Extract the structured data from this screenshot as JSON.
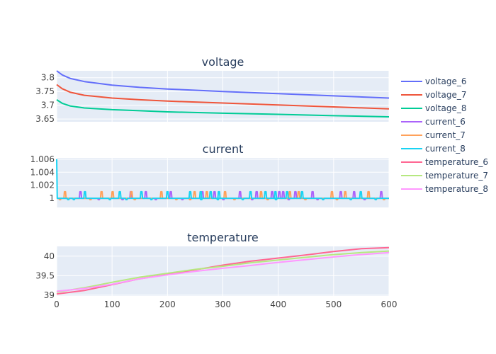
{
  "chart_data": {
    "type": "line",
    "x_range": [
      0,
      600
    ],
    "x_ticks": [
      0,
      100,
      200,
      300,
      400,
      500,
      600
    ],
    "grid": true,
    "legend_position": "right",
    "panels": [
      {
        "title": "voltage",
        "y_range": [
          3.64,
          3.825
        ],
        "y_ticks": [
          3.65,
          3.7,
          3.75,
          3.8
        ],
        "y_tick_labels": [
          "3.65",
          "3.7",
          "3.75",
          "3.8"
        ],
        "series": [
          {
            "name": "voltage_6",
            "color": "#636efa",
            "points": [
              [
                0,
                3.825
              ],
              [
                10,
                3.81
              ],
              [
                25,
                3.797
              ],
              [
                50,
                3.786
              ],
              [
                100,
                3.773
              ],
              [
                150,
                3.765
              ],
              [
                200,
                3.759
              ],
              [
                300,
                3.75
              ],
              [
                400,
                3.742
              ],
              [
                500,
                3.734
              ],
              [
                600,
                3.726
              ]
            ]
          },
          {
            "name": "voltage_7",
            "color": "#ef553b",
            "points": [
              [
                0,
                3.775
              ],
              [
                10,
                3.76
              ],
              [
                25,
                3.747
              ],
              [
                50,
                3.736
              ],
              [
                100,
                3.726
              ],
              [
                150,
                3.72
              ],
              [
                200,
                3.715
              ],
              [
                300,
                3.708
              ],
              [
                400,
                3.701
              ],
              [
                500,
                3.694
              ],
              [
                600,
                3.687
              ]
            ]
          },
          {
            "name": "voltage_8",
            "color": "#00cc96",
            "points": [
              [
                0,
                3.72
              ],
              [
                10,
                3.707
              ],
              [
                25,
                3.697
              ],
              [
                50,
                3.69
              ],
              [
                100,
                3.684
              ],
              [
                150,
                3.68
              ],
              [
                200,
                3.676
              ],
              [
                300,
                3.671
              ],
              [
                400,
                3.667
              ],
              [
                500,
                3.662
              ],
              [
                600,
                3.658
              ]
            ]
          }
        ]
      },
      {
        "title": "current",
        "y_range": [
          0.9986,
          1.0062
        ],
        "y_ticks": [
          1,
          1.002,
          1.004,
          1.006
        ],
        "y_tick_labels": [
          "1",
          "1.002",
          "1.004",
          "1.006"
        ],
        "series": [
          {
            "name": "current_6",
            "color": "#ab63fa",
            "base": 1.0,
            "high": 1.001,
            "low": 0.9998,
            "spikes_high": [
              42,
              133,
              160,
              205,
              262,
              284,
              330,
              360,
              388,
              401,
              408,
              430,
              461,
              512,
              536,
              585
            ],
            "spikes_low": [
              75,
              118,
              178,
              226,
              300,
              352,
              418,
              470,
              555
            ]
          },
          {
            "name": "current_7",
            "color": "#ffa15a",
            "base": 1.0,
            "high": 1.001,
            "low": 0.9998,
            "spikes_high": [
              14,
              80,
              100,
              134,
              188,
              248,
              270,
              303,
              368,
              420,
              436,
              496,
              520,
              562
            ],
            "spikes_low": [
              5,
              60,
              140,
              215,
              240,
              320,
              380,
              448,
              505,
              590
            ]
          },
          {
            "name": "current_8",
            "color": "#19d3f3",
            "base": 1.0,
            "high": 1.001,
            "low": 0.9998,
            "start_spike": 1.006,
            "spikes_high": [
              50,
              113,
              152,
              199,
              240,
              259,
              277,
              292,
              349,
              376,
              394,
              415,
              442,
              548
            ],
            "spikes_low": [
              20,
              30,
              95,
              125,
              170,
              260,
              290,
              335,
              395,
              480,
              530,
              575
            ]
          }
        ]
      },
      {
        "title": "temperature",
        "y_range": [
          38.98,
          40.25
        ],
        "y_ticks": [
          39,
          39.5,
          40
        ],
        "y_tick_labels": [
          "39",
          "39.5",
          "40"
        ],
        "series": [
          {
            "name": "temperature_6",
            "color": "#ff6692",
            "points": [
              [
                0,
                39.03
              ],
              [
                50,
                39.12
              ],
              [
                100,
                39.27
              ],
              [
                150,
                39.42
              ],
              [
                200,
                39.53
              ],
              [
                250,
                39.65
              ],
              [
                300,
                39.77
              ],
              [
                350,
                39.87
              ],
              [
                400,
                39.95
              ],
              [
                450,
                40.03
              ],
              [
                500,
                40.12
              ],
              [
                550,
                40.19
              ],
              [
                600,
                40.22
              ]
            ]
          },
          {
            "name": "temperature_7",
            "color": "#b6e880",
            "points": [
              [
                0,
                39.08
              ],
              [
                50,
                39.19
              ],
              [
                100,
                39.33
              ],
              [
                150,
                39.46
              ],
              [
                200,
                39.56
              ],
              [
                250,
                39.66
              ],
              [
                300,
                39.74
              ],
              [
                350,
                39.83
              ],
              [
                400,
                39.9
              ],
              [
                450,
                39.97
              ],
              [
                500,
                40.04
              ],
              [
                550,
                40.09
              ],
              [
                600,
                40.13
              ]
            ]
          },
          {
            "name": "temperature_8",
            "color": "#ff97ff",
            "points": [
              [
                0,
                39.1
              ],
              [
                50,
                39.17
              ],
              [
                100,
                39.28
              ],
              [
                150,
                39.42
              ],
              [
                200,
                39.52
              ],
              [
                250,
                39.61
              ],
              [
                300,
                39.69
              ],
              [
                350,
                39.76
              ],
              [
                400,
                39.84
              ],
              [
                450,
                39.91
              ],
              [
                500,
                39.98
              ],
              [
                550,
                40.04
              ],
              [
                600,
                40.09
              ]
            ]
          }
        ]
      }
    ]
  }
}
